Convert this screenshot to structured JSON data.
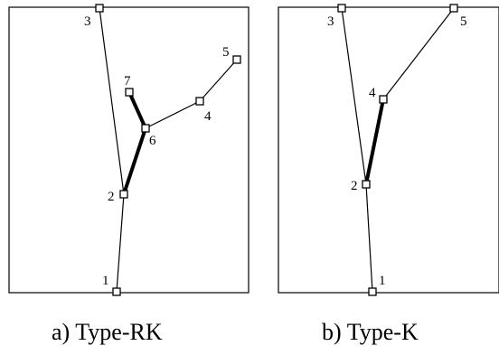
{
  "diagrams": [
    {
      "caption": "a) Type-RK",
      "nodes": [
        {
          "label": "1"
        },
        {
          "label": "2"
        },
        {
          "label": "3"
        },
        {
          "label": "4"
        },
        {
          "label": "5"
        },
        {
          "label": "6"
        },
        {
          "label": "7"
        }
      ]
    },
    {
      "caption": "b) Type-K",
      "nodes": [
        {
          "label": "1"
        },
        {
          "label": "2"
        },
        {
          "label": "3"
        },
        {
          "label": "4"
        },
        {
          "label": "5"
        }
      ]
    }
  ]
}
